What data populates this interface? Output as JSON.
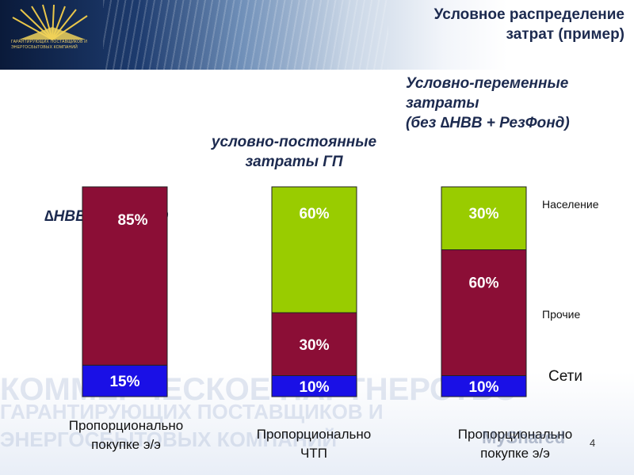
{
  "title_line1": "Условное распределение",
  "title_line2": "затрат (пример)",
  "logo": {
    "line1": "ГАРАНТИРУЮЩИХ ПОСТАВЩИКОВ И",
    "line2": "ЭНЕРГОСБЫТОВЫХ КОМПАНИЙ"
  },
  "watermark": {
    "line1": "КОММЕРЧЕСКОЕ ПАРТНЕРСТВО",
    "line2": "ГАРАНТИРУЮЩИХ ПОСТАВЩИКОВ И",
    "line3": "ЭНЕРГОСБЫТОВЫХ КОМПАНИЙ"
  },
  "annotations": {
    "nvv": "∆НВВ + РезФонд",
    "fixed_line1": "условно-постоянные",
    "fixed_line2": "затраты ГП",
    "variable_line1": "Условно-переменные",
    "variable_line2": "затраты",
    "variable_line3": "(без ∆НВВ + РезФонд)"
  },
  "legend": {
    "population": "Население",
    "other": "Прочие",
    "networks": "Сети"
  },
  "page_number": "4",
  "site_mark": "MyShared",
  "chart_data": {
    "type": "bar",
    "stacked": true,
    "categories": [
      "Пропорционально покупке э/э",
      "Пропорционально ЧТП",
      "Пропорционально покупке э/э"
    ],
    "category_lines": [
      [
        "Пропорционально",
        "покупке э/э"
      ],
      [
        "Пропорционально",
        "ЧТП"
      ],
      [
        "Пропорционально",
        "покупке э/э"
      ]
    ],
    "series": [
      {
        "name": "Сети",
        "color": "#1a10e6",
        "values": [
          15,
          10,
          10
        ]
      },
      {
        "name": "Прочие",
        "color": "#8b0e36",
        "values": [
          85,
          30,
          60
        ]
      },
      {
        "name": "Население",
        "color": "#99cc00",
        "values": [
          0,
          60,
          30
        ]
      }
    ],
    "bar_totals": [
      100,
      100,
      100
    ],
    "ylim": [
      0,
      100
    ],
    "grid": false,
    "legend_position": "right"
  }
}
